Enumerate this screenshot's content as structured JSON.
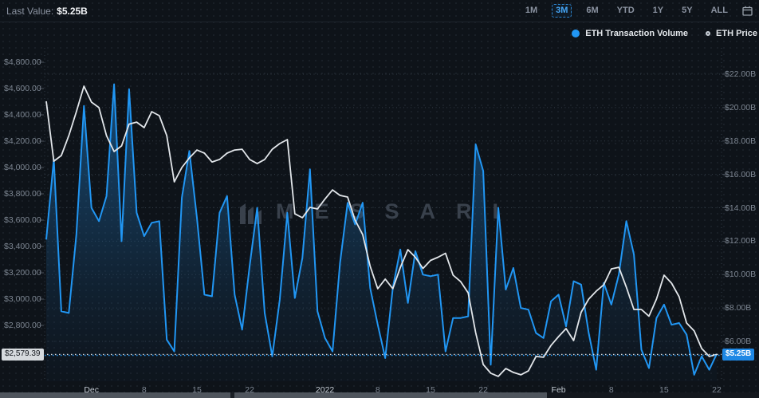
{
  "header": {
    "last_value_label": "Last Value:",
    "last_value": "$5.25B"
  },
  "toolbar": {
    "ranges": [
      "1M",
      "3M",
      "6M",
      "YTD",
      "1Y",
      "5Y",
      "ALL"
    ],
    "active": "3M"
  },
  "legend": [
    {
      "label": "ETH Transaction Volume",
      "marker": "dot",
      "color": "#2196f3"
    },
    {
      "label": "ETH Price",
      "marker": "ring",
      "color": "#c7cdd4"
    }
  ],
  "watermark": {
    "text": "MESSARI"
  },
  "colors": {
    "background": "#0e1319",
    "accent_blue": "#2196f3",
    "price_line": "#e2e6ea",
    "grid": "#333c47",
    "axis_text": "#7d8692",
    "price_marker_bg": "#d6dade",
    "volume_marker_bg": "#1e88e5"
  },
  "axes": {
    "left": {
      "current": "$2,579.39",
      "ticks": [
        {
          "label": "$4,800.00",
          "value": 4800
        },
        {
          "label": "$4,600.00",
          "value": 4600
        },
        {
          "label": "$4,400.00",
          "value": 4400
        },
        {
          "label": "$4,200.00",
          "value": 4200
        },
        {
          "label": "$4,000.00",
          "value": 4000
        },
        {
          "label": "$3,800.00",
          "value": 3800
        },
        {
          "label": "$3,600.00",
          "value": 3600
        },
        {
          "label": "$3,400.00",
          "value": 3400
        },
        {
          "label": "$3,200.00",
          "value": 3200
        },
        {
          "label": "$3,000.00",
          "value": 3000
        },
        {
          "label": "$2,800.00",
          "value": 2800
        }
      ]
    },
    "right": {
      "current": "$5.25B",
      "ticks": [
        {
          "label": "$22.00B",
          "value": 22
        },
        {
          "label": "$20.00B",
          "value": 20
        },
        {
          "label": "$18.00B",
          "value": 18
        },
        {
          "label": "$16.00B",
          "value": 16
        },
        {
          "label": "$14.00B",
          "value": 14
        },
        {
          "label": "$12.00B",
          "value": 12
        },
        {
          "label": "$10.00B",
          "value": 10
        },
        {
          "label": "$8.00B",
          "value": 8
        },
        {
          "label": "$6.00B",
          "value": 6
        }
      ]
    },
    "x": {
      "ticks": [
        {
          "label": "Dec",
          "day": 6,
          "strong": true
        },
        {
          "label": "8",
          "day": 13,
          "strong": false
        },
        {
          "label": "15",
          "day": 20,
          "strong": false
        },
        {
          "label": "22",
          "day": 27,
          "strong": false
        },
        {
          "label": "2022",
          "day": 37,
          "strong": true
        },
        {
          "label": "8",
          "day": 44,
          "strong": false
        },
        {
          "label": "15",
          "day": 51,
          "strong": false
        },
        {
          "label": "22",
          "day": 58,
          "strong": false
        },
        {
          "label": "Feb",
          "day": 68,
          "strong": true
        },
        {
          "label": "8",
          "day": 75,
          "strong": false
        },
        {
          "label": "15",
          "day": 82,
          "strong": false
        },
        {
          "label": "22",
          "day": 89,
          "strong": false
        }
      ]
    }
  },
  "chart_data": {
    "type": "area",
    "title": "ETH Transaction Volume vs ETH Price (3M)",
    "x": {
      "start_date": "2021-11-25",
      "end_date": "2022-02-22",
      "frequency": "daily",
      "tick_labels": [
        "Dec",
        "8",
        "15",
        "22",
        "2022",
        "8",
        "15",
        "22",
        "Feb",
        "8",
        "15",
        "22"
      ]
    },
    "legend_position": "top-right",
    "grid": "dotted-horizontal",
    "series": [
      {
        "name": "ETH Transaction Volume",
        "type": "area",
        "axis": "right",
        "unit": "USD billions",
        "color": "#2196f3",
        "ylim": [
          4,
          22
        ],
        "last_value": 5.25,
        "values": [
          12.1,
          16.9,
          7.8,
          7.7,
          12.4,
          20.1,
          14.0,
          13.2,
          14.7,
          21.4,
          12.0,
          21.1,
          13.7,
          12.3,
          13.1,
          13.2,
          6.1,
          5.4,
          14.6,
          17.4,
          13.4,
          8.8,
          8.7,
          13.7,
          14.7,
          8.8,
          6.7,
          10.5,
          14.0,
          7.7,
          5.1,
          8.5,
          13.7,
          8.6,
          11.0,
          16.3,
          7.8,
          6.2,
          5.4,
          10.7,
          14.3,
          13.0,
          14.3,
          9.2,
          7.0,
          5.0,
          9.2,
          11.5,
          8.3,
          11.4,
          10.0,
          9.9,
          10.0,
          5.4,
          7.4,
          7.4,
          7.5,
          17.8,
          16.2,
          4.6,
          14.0,
          9.1,
          10.4,
          8.0,
          7.9,
          6.5,
          6.2,
          8.4,
          8.8,
          6.9,
          9.6,
          9.4,
          6.5,
          4.3,
          9.5,
          8.2,
          10.0,
          13.2,
          11.2,
          5.5,
          4.4,
          7.4,
          8.2,
          7.0,
          7.1,
          6.4,
          4.0,
          5.1,
          4.3,
          5.25
        ]
      },
      {
        "name": "ETH Price",
        "type": "line",
        "axis": "left",
        "unit": "USD",
        "color": "#e2e6ea",
        "ylim": [
          2413,
          4800
        ],
        "last_value": 2579.39,
        "values": [
          4503,
          4048,
          4091,
          4242,
          4424,
          4618,
          4497,
          4455,
          4242,
          4121,
          4164,
          4330,
          4345,
          4303,
          4424,
          4394,
          4242,
          3891,
          4000,
          4073,
          4133,
          4109,
          4042,
          4061,
          4109,
          4133,
          4139,
          4061,
          4030,
          4061,
          4139,
          4182,
          4212,
          3648,
          3618,
          3697,
          3685,
          3760,
          3830,
          3788,
          3776,
          3600,
          3490,
          3250,
          3079,
          3152,
          3079,
          3240,
          3376,
          3318,
          3233,
          3294,
          3318,
          3348,
          3182,
          3133,
          3048,
          2746,
          2503,
          2437,
          2413,
          2473,
          2443,
          2425,
          2455,
          2564,
          2558,
          2648,
          2715,
          2776,
          2685,
          2900,
          3000,
          3060,
          3109,
          3230,
          3242,
          3091,
          2921,
          2921,
          2870,
          3000,
          3182,
          3121,
          3018,
          2818,
          2758,
          2625,
          2564,
          2579.39
        ]
      }
    ],
    "axis_left_ticks": [
      4800,
      4600,
      4400,
      4200,
      4000,
      3800,
      3600,
      3400,
      3200,
      3000,
      2800
    ],
    "axis_right_ticks": [
      22,
      20,
      18,
      16,
      14,
      12,
      10,
      8,
      6
    ]
  }
}
